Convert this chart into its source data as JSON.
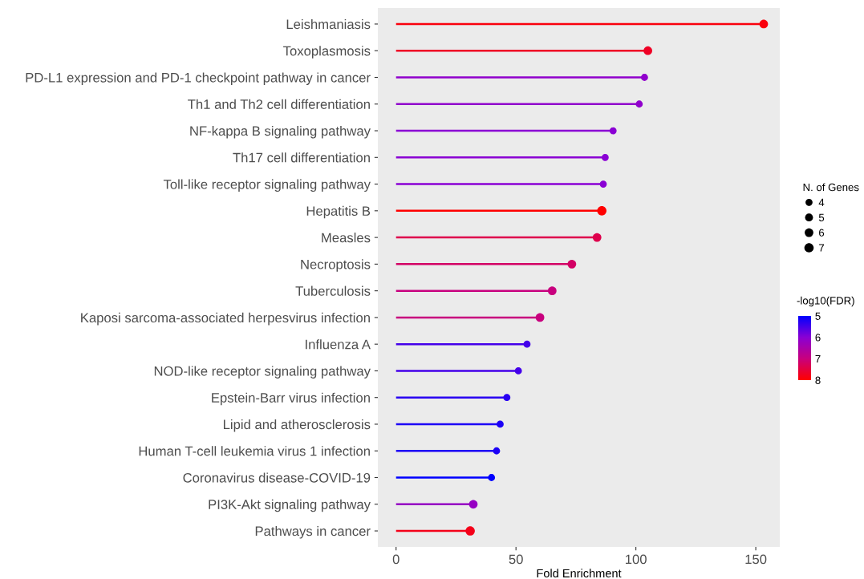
{
  "chart_data": {
    "type": "lollipop",
    "orientation": "horizontal",
    "xlabel": "Fold Enrichment",
    "legend_title": "N. of Genes",
    "clabel": "-log10(FDR)",
    "categories": [
      "Leishmaniasis",
      "Toxoplasmosis",
      "PD-L1 expression and PD-1 checkpoint pathway in cancer",
      "Th1 and Th2 cell differentiation",
      "NF-kappa B signaling pathway",
      "Th17 cell differentiation",
      "Toll-like receptor signaling pathway",
      "Hepatitis B",
      "Measles",
      "Necroptosis",
      "Tuberculosis",
      "Kaposi sarcoma-associated herpesvirus infection",
      "Influenza A",
      "NOD-like receptor signaling pathway",
      "Epstein-Barr virus infection",
      "Lipid and atherosclerosis",
      "Human T-cell leukemia virus 1 infection",
      "Coronavirus disease-COVID-19",
      "PI3K-Akt signaling pathway",
      "Pathways in cancer"
    ],
    "values": [
      153.3,
      105,
      103.6,
      101.4,
      90.5,
      87.2,
      86.4,
      85.8,
      83.8,
      73.3,
      65.1,
      60.0,
      54.6,
      51.0,
      46.2,
      43.4,
      41.9,
      39.8,
      32.2,
      30.9
    ],
    "sizes": [
      6,
      6,
      4,
      4,
      4,
      4,
      4,
      7,
      6,
      6,
      6,
      6,
      4,
      4,
      4,
      4,
      4,
      4,
      6,
      7
    ],
    "size_legend": [
      4,
      5,
      6,
      7
    ],
    "cvalues": [
      7.9,
      7.7,
      6.1,
      6.1,
      6.0,
      6.0,
      6.0,
      8.0,
      7.4,
      7.2,
      7.0,
      7.0,
      5.5,
      5.5,
      5.3,
      5.2,
      5.2,
      5.0,
      6.2,
      7.8
    ],
    "clim": [
      5,
      8
    ],
    "cticks": [
      5,
      6,
      7,
      8
    ],
    "xlim": [
      -7.6,
      160
    ],
    "xticks": [
      0,
      50,
      100,
      150
    ],
    "marker": "circle"
  }
}
